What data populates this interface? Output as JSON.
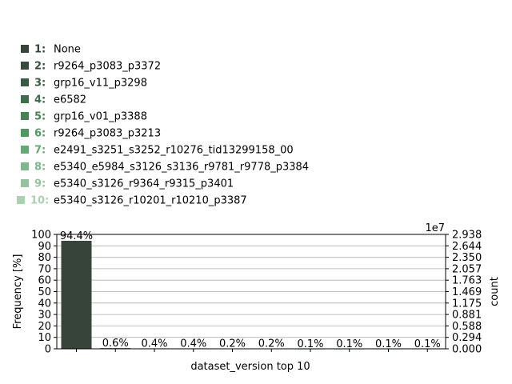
{
  "chart_data": {
    "type": "bar",
    "xlabel": "dataset_version top 10",
    "ylabel": "Frequency [%]",
    "ylabel_right": "count",
    "right_axis_multiplier": "1e7",
    "ylim": [
      0,
      100
    ],
    "yticks": [
      0,
      10,
      20,
      30,
      40,
      50,
      60,
      70,
      80,
      90,
      100
    ],
    "right_yticks": [
      "0.000",
      "0.294",
      "0.588",
      "0.881",
      "1.175",
      "1.469",
      "1.763",
      "2.057",
      "2.350",
      "2.644",
      "2.938"
    ],
    "grid": "horizontal",
    "categories": [
      "None",
      "r9264_p3083_p3372",
      "grp16_v11_p3298",
      "e6582",
      "grp16_v01_p3388",
      "r9264_p3083_p3213",
      "e2491_s3251_s3252_r10276_tid13299158_00",
      "e5340_e5984_s3126_s3136_r9781_r9778_p3384",
      "e5340_s3126_r9364_r9315_p3401",
      "e5340_s3126_r10201_r10210_p3387"
    ],
    "legend_numbers": [
      "1:",
      "2:",
      "3:",
      "4:",
      "5:",
      "6:",
      "7:",
      "8:",
      "9:",
      "10:"
    ],
    "values": [
      94.4,
      0.6,
      0.4,
      0.4,
      0.2,
      0.2,
      0.1,
      0.1,
      0.1,
      0.1
    ],
    "labels": [
      "94.4%",
      "0.6%",
      "0.4%",
      "0.4%",
      "0.2%",
      "0.2%",
      "0.1%",
      "0.1%",
      "0.1%",
      "0.1%"
    ],
    "colors": [
      "#36443a",
      "#354d3c",
      "#385c42",
      "#3c6e49",
      "#438450",
      "#4d9a5d",
      "#62aa72",
      "#7bb98a",
      "#94c49e",
      "#a9d2b0"
    ],
    "legend_placement": "top-left"
  }
}
